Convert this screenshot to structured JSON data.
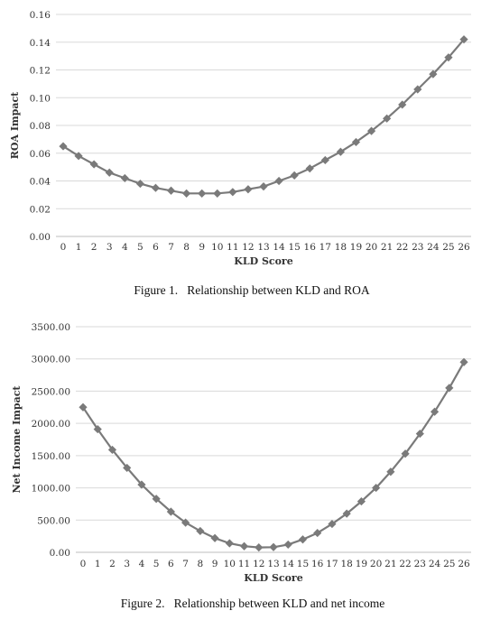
{
  "chart_data": [
    {
      "type": "line",
      "xlabel": "KLD Score",
      "ylabel": "ROA Impact",
      "caption": "Figure 1.   Relationship between KLD and ROA",
      "ylim": [
        0,
        0.16
      ],
      "yticks": [
        "0.00",
        "0.02",
        "0.04",
        "0.06",
        "0.08",
        "0.10",
        "0.12",
        "0.14",
        "0.16"
      ],
      "x": [
        0,
        1,
        2,
        3,
        4,
        5,
        6,
        7,
        8,
        9,
        10,
        11,
        12,
        13,
        14,
        15,
        16,
        17,
        18,
        19,
        20,
        21,
        22,
        23,
        24,
        25,
        26
      ],
      "values": [
        0.065,
        0.058,
        0.052,
        0.046,
        0.042,
        0.038,
        0.035,
        0.033,
        0.031,
        0.031,
        0.031,
        0.032,
        0.034,
        0.036,
        0.04,
        0.044,
        0.049,
        0.055,
        0.061,
        0.068,
        0.076,
        0.085,
        0.095,
        0.106,
        0.117,
        0.129,
        0.142
      ],
      "grid": true,
      "color": "#7a7a7a"
    },
    {
      "type": "line",
      "xlabel": "KLD Score",
      "ylabel": "Net Income Impact",
      "caption": "Figure 2.   Relationship between KLD and net income",
      "ylim": [
        0,
        3500
      ],
      "yticks": [
        "0.00",
        "500.00",
        "1000.00",
        "1500.00",
        "2000.00",
        "2500.00",
        "3000.00",
        "3500.00"
      ],
      "x": [
        0,
        1,
        2,
        3,
        4,
        5,
        6,
        7,
        8,
        9,
        10,
        11,
        12,
        13,
        14,
        15,
        16,
        17,
        18,
        19,
        20,
        21,
        22,
        23,
        24,
        25,
        26
      ],
      "values": [
        2250,
        1910,
        1590,
        1310,
        1050,
        830,
        630,
        460,
        330,
        220,
        140,
        95,
        75,
        80,
        120,
        200,
        300,
        440,
        600,
        790,
        1000,
        1250,
        1530,
        1840,
        2180,
        2550,
        2950
      ],
      "grid": true,
      "color": "#7a7a7a"
    }
  ]
}
